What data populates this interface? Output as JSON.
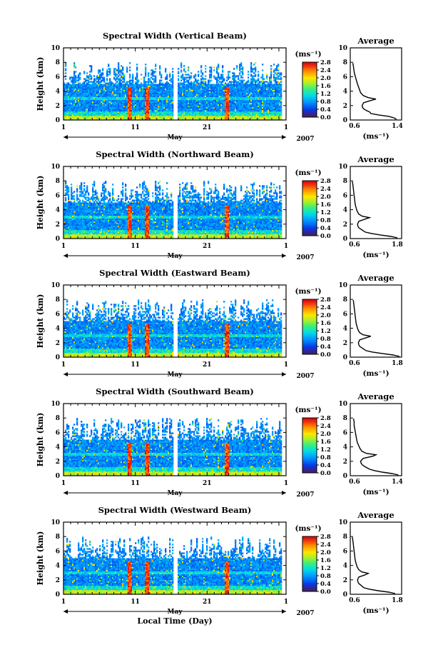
{
  "chart_data": [
    {
      "type": "heatmap",
      "title": "Spectral Width (Vertical Beam)",
      "ylabel": "Height (km)",
      "ylim": [
        0,
        10
      ],
      "yticks": [
        "0",
        "2",
        "4",
        "6",
        "8",
        "10"
      ],
      "xticks": [
        "1",
        "11",
        "21",
        "1"
      ],
      "month_label": "May",
      "year_label": "2007",
      "colorbar": {
        "unit": "(ms⁻¹)",
        "range": [
          0,
          2.8
        ],
        "ticks": [
          "0.0",
          "0.4",
          "0.8",
          "1.2",
          "1.6",
          "2.0",
          "2.4",
          "2.8"
        ]
      },
      "average": {
        "title": "Average",
        "xlabel": "(ms⁻¹)",
        "xlim": [
          0.6,
          1.6
        ],
        "xticks": [
          "0.6",
          "1.4"
        ],
        "ylim": [
          0,
          10
        ],
        "yticks": [
          "0",
          "2",
          "4",
          "6",
          "8",
          "10"
        ],
        "height": [
          0.1,
          0.3,
          0.5,
          0.7,
          0.9,
          1.1,
          1.3,
          1.5,
          1.7,
          2.0,
          2.4,
          2.7,
          2.9,
          3.1,
          3.4,
          3.8,
          4.2,
          4.6,
          5.0,
          5.5,
          6.0,
          6.5,
          7.0,
          7.5,
          7.9
        ],
        "width": [
          1.5,
          1.45,
          1.35,
          1.15,
          1.0,
          0.98,
          0.92,
          0.87,
          0.84,
          0.83,
          0.86,
          1.0,
          1.1,
          0.95,
          0.85,
          0.8,
          0.78,
          0.76,
          0.74,
          0.72,
          0.7,
          0.68,
          0.67,
          0.66,
          0.65
        ]
      }
    },
    {
      "type": "heatmap",
      "title": "Spectral Width (Northward Beam)",
      "ylabel": "Height (km)",
      "ylim": [
        0,
        10
      ],
      "yticks": [
        "0",
        "2",
        "4",
        "6",
        "8",
        "10"
      ],
      "xticks": [
        "1",
        "11",
        "21",
        "1"
      ],
      "month_label": "May",
      "year_label": "2007",
      "colorbar": {
        "unit": "(ms⁻¹)",
        "range": [
          0,
          2.8
        ],
        "ticks": [
          "0.0",
          "0.4",
          "0.8",
          "1.2",
          "1.6",
          "2.0",
          "2.4",
          "2.8"
        ]
      },
      "average": {
        "title": "Average",
        "xlabel": "(ms⁻¹)",
        "xlim": [
          0.6,
          1.8
        ],
        "xticks": [
          "0.6",
          "1.8"
        ],
        "ylim": [
          0,
          10
        ],
        "yticks": [
          "0",
          "2",
          "4",
          "6",
          "8",
          "10"
        ],
        "height": [
          0.1,
          0.3,
          0.5,
          0.7,
          0.9,
          1.1,
          1.3,
          1.5,
          1.7,
          2.0,
          2.4,
          2.7,
          2.9,
          3.1,
          3.4,
          3.8,
          4.2,
          4.6,
          5.0,
          5.5,
          6.0,
          6.5,
          7.0,
          7.5,
          7.9
        ],
        "width": [
          1.7,
          1.55,
          1.3,
          1.1,
          0.95,
          0.9,
          0.85,
          0.8,
          0.78,
          0.77,
          0.8,
          0.95,
          1.05,
          0.88,
          0.8,
          0.76,
          0.74,
          0.72,
          0.71,
          0.7,
          0.69,
          0.68,
          0.67,
          0.66,
          0.65
        ]
      }
    },
    {
      "type": "heatmap",
      "title": "Spectral Width (Eastward Beam)",
      "ylabel": "Height (km)",
      "ylim": [
        0,
        10
      ],
      "yticks": [
        "0",
        "2",
        "4",
        "6",
        "8",
        "10"
      ],
      "xticks": [
        "1",
        "11",
        "21",
        "1"
      ],
      "month_label": "May",
      "year_label": "2007",
      "colorbar": {
        "unit": "(ms⁻¹)",
        "range": [
          0,
          2.8
        ],
        "ticks": [
          "0.0",
          "0.4",
          "0.8",
          "1.2",
          "1.6",
          "2.0",
          "2.4",
          "2.8"
        ]
      },
      "average": {
        "title": "Average",
        "xlabel": "(ms⁻¹)",
        "xlim": [
          0.6,
          1.8
        ],
        "xticks": [
          "0.6",
          "1.8"
        ],
        "ylim": [
          0,
          10
        ],
        "yticks": [
          "0",
          "2",
          "4",
          "6",
          "8",
          "10"
        ],
        "height": [
          0.1,
          0.3,
          0.5,
          0.7,
          0.9,
          1.1,
          1.3,
          1.5,
          1.7,
          2.0,
          2.4,
          2.7,
          2.9,
          3.1,
          3.4,
          3.8,
          4.2,
          4.6,
          5.0,
          5.5,
          6.0,
          6.5,
          7.0,
          7.5,
          7.9
        ],
        "width": [
          1.75,
          1.6,
          1.35,
          1.12,
          0.97,
          0.92,
          0.87,
          0.82,
          0.8,
          0.79,
          0.82,
          0.98,
          1.08,
          0.9,
          0.82,
          0.78,
          0.76,
          0.74,
          0.73,
          0.72,
          0.71,
          0.7,
          0.69,
          0.68,
          0.67
        ]
      }
    },
    {
      "type": "heatmap",
      "title": "Spectral Width (Southward Beam)",
      "ylabel": "Height (km)",
      "ylim": [
        0,
        10
      ],
      "yticks": [
        "0",
        "2",
        "4",
        "6",
        "8",
        "10"
      ],
      "xticks": [
        "1",
        "11",
        "21",
        "1"
      ],
      "month_label": "May",
      "year_label": "2007",
      "colorbar": {
        "unit": "(ms⁻¹)",
        "range": [
          0,
          2.8
        ],
        "ticks": [
          "0.0",
          "0.4",
          "0.8",
          "1.2",
          "1.6",
          "2.0",
          "2.4",
          "2.8"
        ]
      },
      "average": {
        "title": "Average",
        "xlabel": "(ms⁻¹)",
        "xlim": [
          0.6,
          1.4
        ],
        "xticks": [
          "0.6",
          "1.4"
        ],
        "ylim": [
          0,
          10
        ],
        "yticks": [
          "0",
          "2",
          "4",
          "6",
          "8",
          "10"
        ],
        "height": [
          0.1,
          0.3,
          0.5,
          0.7,
          0.9,
          1.1,
          1.3,
          1.5,
          1.7,
          2.0,
          2.4,
          2.7,
          2.9,
          3.1,
          3.4,
          3.8,
          4.2,
          4.6,
          5.0,
          5.5,
          6.0,
          6.5,
          7.0,
          7.5,
          7.9
        ],
        "width": [
          1.35,
          1.25,
          1.1,
          0.98,
          0.9,
          0.86,
          0.82,
          0.79,
          0.77,
          0.76,
          0.8,
          0.95,
          1.0,
          0.85,
          0.78,
          0.75,
          0.73,
          0.71,
          0.7,
          0.69,
          0.68,
          0.67,
          0.66,
          0.66,
          0.65
        ]
      }
    },
    {
      "type": "heatmap",
      "title": "Spectral Width (Westward Beam)",
      "ylabel": "Height (km)",
      "ylim": [
        0,
        10
      ],
      "yticks": [
        "0",
        "2",
        "4",
        "6",
        "8",
        "10"
      ],
      "xticks": [
        "1",
        "11",
        "21",
        "1"
      ],
      "month_label": "May",
      "year_label": "2007",
      "xlabel": "Local Time (Day)",
      "colorbar": {
        "unit": "(ms⁻¹)",
        "range": [
          0,
          2.8
        ],
        "ticks": [
          "0.0",
          "0.4",
          "0.8",
          "1.2",
          "1.6",
          "2.0",
          "2.4",
          "2.8"
        ]
      },
      "average": {
        "title": "Average",
        "xlabel": "(ms⁻¹)",
        "xlim": [
          0.6,
          1.8
        ],
        "xticks": [
          "0.6",
          "1.8"
        ],
        "ylim": [
          0,
          10
        ],
        "yticks": [
          "0",
          "2",
          "4",
          "6",
          "8",
          "10"
        ],
        "height": [
          0.1,
          0.3,
          0.5,
          0.7,
          0.9,
          1.1,
          1.3,
          1.5,
          1.7,
          2.0,
          2.4,
          2.7,
          2.9,
          3.1,
          3.4,
          3.8,
          4.2,
          4.6,
          5.0,
          5.5,
          6.0,
          6.5,
          7.0,
          7.5,
          7.9
        ],
        "width": [
          1.65,
          1.5,
          1.25,
          1.05,
          0.92,
          0.88,
          0.84,
          0.8,
          0.78,
          0.77,
          0.8,
          0.95,
          1.02,
          0.87,
          0.8,
          0.76,
          0.74,
          0.72,
          0.71,
          0.7,
          0.69,
          0.68,
          0.67,
          0.66,
          0.65
        ]
      }
    }
  ]
}
